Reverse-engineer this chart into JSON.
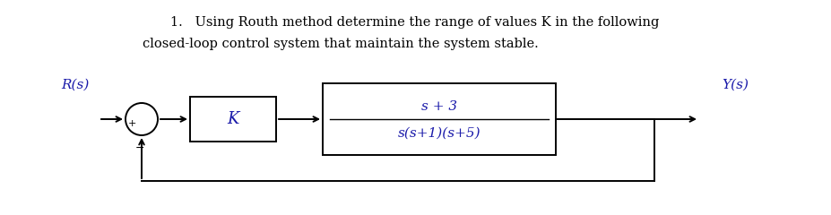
{
  "title_line1": "1.   Using Routh method determine the range of values K in the following",
  "title_line2": "closed-loop control system that maintain the system stable.",
  "title_fontsize": 10.5,
  "title_color": "#000000",
  "bg_color": "#ffffff",
  "diagram_color": "#000000",
  "label_color": "#1a1aaa",
  "R_label": "R(s)",
  "Y_label": "Y(s)",
  "K_label": "K",
  "numerator": "s + 3",
  "denominator": "s(s+1)(s+5)",
  "plus_sign": "+",
  "minus_sign": "−",
  "lw": 1.4
}
